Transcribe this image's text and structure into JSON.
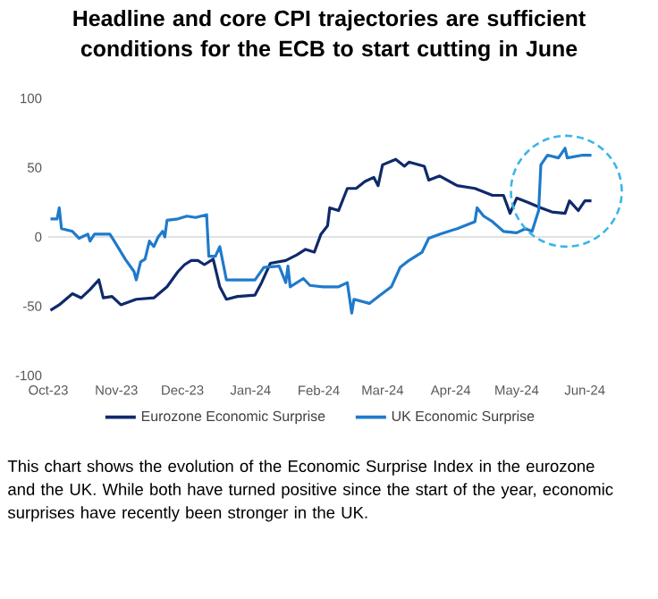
{
  "chart_data": {
    "type": "line",
    "title": "Headline and core CPI trajectories are sufficient conditions for the ECB to start cutting in June",
    "annotations": [
      "This chart shows the evolution of the Economic Surprise Index in the eurozone and the UK. While both have turned positive since the start of the year, economic surprises have recently been stronger in the UK."
    ],
    "series": [
      {
        "name": "Eurozone Economic Surprise",
        "color": "#0f2a6b",
        "x": [
          "2023-10-02",
          "2023-10-06",
          "2023-10-12",
          "2023-10-16",
          "2023-10-20",
          "2023-10-24",
          "2023-10-26",
          "2023-10-30",
          "2023-11-03",
          "2023-11-10",
          "2023-11-18",
          "2023-11-24",
          "2023-11-29",
          "2023-12-02",
          "2023-12-05",
          "2023-12-08",
          "2023-12-11",
          "2023-12-15",
          "2023-12-18",
          "2023-12-21",
          "2023-12-26",
          "2024-01-03",
          "2024-01-06",
          "2024-01-10",
          "2024-01-17",
          "2024-01-22",
          "2024-01-26",
          "2024-01-30",
          "2024-02-02",
          "2024-02-05",
          "2024-02-06",
          "2024-02-10",
          "2024-02-14",
          "2024-02-18",
          "2024-02-22",
          "2024-02-26",
          "2024-02-28",
          "2024-03-01",
          "2024-03-07",
          "2024-03-11",
          "2024-03-13",
          "2024-03-20",
          "2024-03-22",
          "2024-03-27",
          "2024-04-04",
          "2024-04-12",
          "2024-04-20",
          "2024-04-25",
          "2024-04-28",
          "2024-05-01",
          "2024-05-06",
          "2024-05-12",
          "2024-05-17",
          "2024-05-23",
          "2024-05-25",
          "2024-05-29",
          "2024-06-01",
          "2024-06-04"
        ],
        "values": [
          -53,
          -49,
          -41,
          -44,
          -38,
          -31,
          -44,
          -43,
          -49,
          -45,
          -44,
          -36,
          -25,
          -20,
          -17,
          -17,
          -20,
          -16,
          -36,
          -45,
          -43,
          -42,
          -33,
          -19,
          -17,
          -13,
          -9,
          -11,
          2,
          8,
          21,
          19,
          35,
          35,
          40,
          43,
          37,
          52,
          56,
          51,
          54,
          51,
          41,
          44,
          37,
          35,
          30,
          30,
          17,
          28,
          25,
          21,
          18,
          17,
          26,
          19,
          26,
          26
        ]
      },
      {
        "name": "UK Economic Surprise",
        "color": "#1f7acc",
        "x": [
          "2023-10-02",
          "2023-10-05",
          "2023-10-06",
          "2023-10-07",
          "2023-10-12",
          "2023-10-15",
          "2023-10-19",
          "2023-10-20",
          "2023-10-22",
          "2023-10-29",
          "2023-10-31",
          "2023-11-05",
          "2023-11-09",
          "2023-11-10",
          "2023-11-12",
          "2023-11-14",
          "2023-11-16",
          "2023-11-18",
          "2023-11-20",
          "2023-11-22",
          "2023-11-23",
          "2023-11-24",
          "2023-11-29",
          "2023-12-03",
          "2023-12-07",
          "2023-12-12",
          "2023-12-13",
          "2023-12-16",
          "2023-12-18",
          "2023-12-21",
          "2024-01-03",
          "2024-01-07",
          "2024-01-14",
          "2024-01-17",
          "2024-01-18",
          "2024-01-19",
          "2024-01-25",
          "2024-01-28",
          "2024-02-03",
          "2024-02-10",
          "2024-02-14",
          "2024-02-15",
          "2024-02-16",
          "2024-02-17",
          "2024-02-24",
          "2024-02-29",
          "2024-03-05",
          "2024-03-09",
          "2024-03-13",
          "2024-03-19",
          "2024-03-22",
          "2024-03-27",
          "2024-04-04",
          "2024-04-12",
          "2024-04-13",
          "2024-04-16",
          "2024-04-20",
          "2024-04-25",
          "2024-05-01",
          "2024-05-05",
          "2024-05-08",
          "2024-05-11",
          "2024-05-12",
          "2024-05-15",
          "2024-05-20",
          "2024-05-23",
          "2024-05-24",
          "2024-05-31",
          "2024-06-04"
        ],
        "values": [
          13,
          13,
          21,
          6,
          4,
          -1,
          2,
          -3,
          2,
          2,
          -3,
          -16,
          -25,
          -31,
          -18,
          -16,
          -3,
          -7,
          0,
          4,
          0,
          12,
          13,
          15,
          14,
          16,
          -14,
          -14,
          -7,
          -31,
          -31,
          -22,
          -21,
          -33,
          -21,
          -36,
          -30,
          -35,
          -36,
          -36,
          -33,
          -44,
          -55,
          -45,
          -48,
          -42,
          -36,
          -22,
          -17,
          -11,
          -1,
          2,
          6,
          11,
          21,
          15,
          11,
          4,
          3,
          6,
          4,
          19,
          52,
          59,
          57,
          64,
          57,
          59,
          59
        ]
      }
    ],
    "xlim": [
      "2023-10-01",
      "2024-06-05"
    ],
    "xticks": [
      {
        "value": "2023-10-01",
        "label": "Oct-23"
      },
      {
        "value": "2023-11-01",
        "label": "Nov-23"
      },
      {
        "value": "2023-12-01",
        "label": "Dec-23"
      },
      {
        "value": "2024-01-01",
        "label": "Jan-24"
      },
      {
        "value": "2024-02-01",
        "label": "Feb-24"
      },
      {
        "value": "2024-03-01",
        "label": "Mar-24"
      },
      {
        "value": "2024-04-01",
        "label": "Apr-24"
      },
      {
        "value": "2024-05-01",
        "label": "May-24"
      },
      {
        "value": "2024-06-01",
        "label": "Jun-24"
      }
    ],
    "ylim": [
      -100,
      100
    ],
    "yticks": [
      -100,
      -50,
      0,
      50,
      100
    ],
    "ref_lines": [
      {
        "axis": "y",
        "value": 0,
        "color": "#d9d9d9"
      }
    ],
    "legend": "bottom",
    "marker": "none",
    "line_style": "solid"
  }
}
